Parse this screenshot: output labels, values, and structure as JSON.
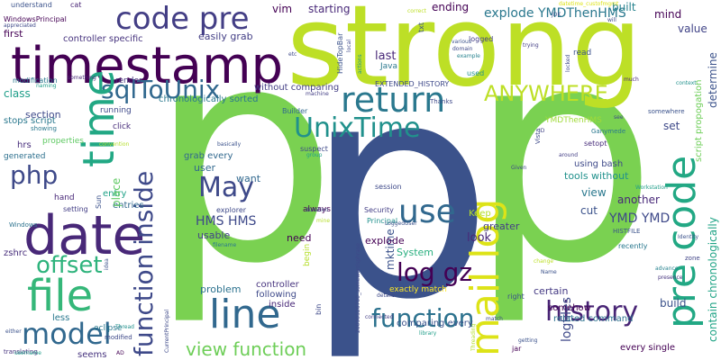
{
  "words": [
    {
      "text": "p",
      "color": "#7ad151",
      "vertical": false
    },
    {
      "text": "p",
      "color": "#7ad151",
      "vertical": false
    },
    {
      "text": "p",
      "color": "#3b528b",
      "vertical": false
    },
    {
      "text": "strong",
      "color": "#bddf26",
      "vertical": false
    },
    {
      "text": "timestamp",
      "color": "#440154",
      "vertical": false
    },
    {
      "text": "code pre",
      "color": "#433e85",
      "vertical": false
    },
    {
      "text": "date",
      "color": "#482878",
      "vertical": false
    },
    {
      "text": "file",
      "color": "#35b779",
      "vertical": false
    },
    {
      "text": "line",
      "color": "#31688e",
      "vertical": false
    },
    {
      "text": "return",
      "color": "#2a788e",
      "vertical": false
    },
    {
      "text": "UnixTime",
      "color": "#21918c",
      "vertical": false
    },
    {
      "text": "sqlToUnix",
      "color": "#31688e",
      "vertical": false
    },
    {
      "text": "ANYWHERE",
      "color": "#bddf26",
      "vertical": false
    },
    {
      "text": "model",
      "color": "#31688e",
      "vertical": false
    },
    {
      "text": "offset",
      "color": "#2eb37c",
      "vertical": false
    },
    {
      "text": "php",
      "color": "#3e4989",
      "vertical": false
    },
    {
      "text": "May",
      "color": "#3e4989",
      "vertical": false
    },
    {
      "text": "use",
      "color": "#31688e",
      "vertical": false
    },
    {
      "text": "log gz",
      "color": "#440154",
      "vertical": false
    },
    {
      "text": "function",
      "color": "#2c728e",
      "vertical": false
    },
    {
      "text": "history",
      "color": "#482475",
      "vertical": false
    },
    {
      "text": "view function",
      "color": "#6ece58",
      "vertical": false
    },
    {
      "text": "explode YMDThenHMS",
      "color": "#2a788e",
      "vertical": false
    },
    {
      "text": "HMS HMS",
      "color": "#3e4989",
      "vertical": false
    },
    {
      "text": "YMD YMD",
      "color": "#3e4989",
      "vertical": false
    },
    {
      "text": "time",
      "color": "#22a884",
      "vertical": true
    },
    {
      "text": "function inside",
      "color": "#3e4989",
      "vertical": true
    },
    {
      "text": "mail log",
      "color": "#dde318",
      "vertical": true
    },
    {
      "text": "pre code",
      "color": "#22a884",
      "vertical": true
    },
    {
      "text": "contain chronologically",
      "color": "#20a486",
      "vertical": true
    },
    {
      "text": "script propogation",
      "color": "#6ece58",
      "vertical": true
    },
    {
      "text": "determine",
      "color": "#3b528b",
      "vertical": true
    },
    {
      "text": "logfiles",
      "color": "#3e4989",
      "vertical": true
    },
    {
      "text": "mktime",
      "color": "#3b528b",
      "vertical": true
    },
    {
      "text": "vim",
      "color": "#440154",
      "vertical": false
    },
    {
      "text": "starting",
      "color": "#482878",
      "vertical": false
    },
    {
      "text": "ending",
      "color": "#440154",
      "vertical": false
    },
    {
      "text": "built",
      "color": "#26828e",
      "vertical": false
    },
    {
      "text": "first",
      "color": "#440154",
      "vertical": false
    },
    {
      "text": "controller specific",
      "color": "#46337e",
      "vertical": false
    },
    {
      "text": "easily grab",
      "color": "#433e85",
      "vertical": false
    },
    {
      "text": "last",
      "color": "#482878",
      "vertical": false
    },
    {
      "text": "value",
      "color": "#414487",
      "vertical": false
    },
    {
      "text": "mind",
      "color": "#440154",
      "vertical": false
    },
    {
      "text": "class",
      "color": "#1f9e89",
      "vertical": false
    },
    {
      "text": "section",
      "color": "#3e4989",
      "vertical": false
    },
    {
      "text": "stops script",
      "color": "#2a788e",
      "vertical": false
    },
    {
      "text": "chronologically sorted",
      "color": "#2a788e",
      "vertical": false
    },
    {
      "text": "without comparing",
      "color": "#433e85",
      "vertical": false
    },
    {
      "text": "EXTENDED_HISTORY",
      "color": "#3e4989",
      "vertical": false
    },
    {
      "text": "set",
      "color": "#3e4989",
      "vertical": false
    },
    {
      "text": "user",
      "color": "#31688e",
      "vertical": false
    },
    {
      "text": "want",
      "color": "#31688e",
      "vertical": false
    },
    {
      "text": "grab every",
      "color": "#31688e",
      "vertical": false
    },
    {
      "text": "setopt",
      "color": "#472c7a",
      "vertical": false
    },
    {
      "text": "using bash",
      "color": "#3e4989",
      "vertical": false
    },
    {
      "text": "tools without",
      "color": "#21918c",
      "vertical": false
    },
    {
      "text": "view",
      "color": "#2a788e",
      "vertical": false
    },
    {
      "text": "another",
      "color": "#482878",
      "vertical": false
    },
    {
      "text": "cut",
      "color": "#3b528b",
      "vertical": false
    },
    {
      "text": "entry",
      "color": "#1fa187",
      "vertical": false
    },
    {
      "text": "entries",
      "color": "#31688e",
      "vertical": false
    },
    {
      "text": "usable",
      "color": "#414487",
      "vertical": false
    },
    {
      "text": "need",
      "color": "#440154",
      "vertical": false
    },
    {
      "text": "explode",
      "color": "#440154",
      "vertical": false
    },
    {
      "text": "Keep",
      "color": "#b5de2b",
      "vertical": false
    },
    {
      "text": "greater",
      "color": "#433e85",
      "vertical": false
    },
    {
      "text": "look",
      "color": "#482878",
      "vertical": false
    },
    {
      "text": "System",
      "color": "#29af7f",
      "vertical": false
    },
    {
      "text": "problem",
      "color": "#2c728e",
      "vertical": false
    },
    {
      "text": "controller",
      "color": "#46337e",
      "vertical": false
    },
    {
      "text": "following",
      "color": "#3e4989",
      "vertical": false
    },
    {
      "text": "exactly match",
      "color": "#fde725",
      "vertical": false
    },
    {
      "text": "certain",
      "color": "#443983",
      "vertical": false
    },
    {
      "text": "somehow",
      "color": "#440154",
      "vertical": false
    },
    {
      "text": "build",
      "color": "#3b528b",
      "vertical": false
    },
    {
      "text": "related command",
      "color": "#2c728e",
      "vertical": false
    },
    {
      "text": "every single",
      "color": "#440154",
      "vertical": false
    },
    {
      "text": "inside",
      "color": "#482878",
      "vertical": false
    },
    {
      "text": "comparing every",
      "color": "#3b528b",
      "vertical": false
    },
    {
      "text": "less",
      "color": "#2a788e",
      "vertical": false
    },
    {
      "text": "seems",
      "color": "#46337e",
      "vertical": false
    },
    {
      "text": "hrs",
      "color": "#472d7b",
      "vertical": false
    },
    {
      "text": "generated",
      "color": "#2d708e",
      "vertical": false
    },
    {
      "text": "zshrc",
      "color": "#472d7b",
      "vertical": false
    },
    {
      "text": "running",
      "color": "#3e4989",
      "vertical": false
    },
    {
      "text": "click",
      "color": "#472c7a",
      "vertical": false
    },
    {
      "text": "properties",
      "color": "#5ec962",
      "vertical": false
    },
    {
      "text": "render",
      "color": "#46337e",
      "vertical": false
    },
    {
      "text": "modification",
      "color": "#2a788e",
      "vertical": false
    },
    {
      "text": "hand",
      "color": "#482878",
      "vertical": false
    },
    {
      "text": "setting",
      "color": "#433e85",
      "vertical": false
    },
    {
      "text": "eclipse",
      "color": "#2a788e",
      "vertical": false
    },
    {
      "text": "place",
      "color": "#5ec962",
      "vertical": true
    },
    {
      "text": "Builder",
      "color": "#31688e",
      "vertical": false
    },
    {
      "text": "YMDThenHMS",
      "color": "#a0da39",
      "vertical": false
    },
    {
      "text": "Java",
      "color": "#2a788e",
      "vertical": false
    },
    {
      "text": "read",
      "color": "#3b528b",
      "vertical": false
    },
    {
      "text": "Principal",
      "color": "#21918c",
      "vertical": false
    },
    {
      "text": "explorer",
      "color": "#3e4989",
      "vertical": false
    },
    {
      "text": "always",
      "color": "#440154",
      "vertical": false
    },
    {
      "text": "suspect",
      "color": "#3e4989",
      "vertical": false
    },
    {
      "text": "session",
      "color": "#3e4989",
      "vertical": false
    },
    {
      "text": "Security",
      "color": "#433e85",
      "vertical": false
    },
    {
      "text": "right",
      "color": "#3b528b",
      "vertical": false
    },
    {
      "text": "jar",
      "color": "#440154",
      "vertical": false
    },
    {
      "text": "recently",
      "color": "#2a788e",
      "vertical": false
    },
    {
      "text": "HISTFILE",
      "color": "#3b528b",
      "vertical": false
    },
    {
      "text": "Windows",
      "color": "#2c728e",
      "vertical": false
    },
    {
      "text": "WindowsPrincipal",
      "color": "#440154",
      "vertical": false
    },
    {
      "text": "understand",
      "color": "#3b528b",
      "vertical": false
    },
    {
      "text": "cat",
      "color": "#482475",
      "vertical": false
    },
    {
      "text": "showing",
      "color": "#2a788e",
      "vertical": false
    },
    {
      "text": "naming",
      "color": "#1f9e89",
      "vertical": false
    },
    {
      "text": "something",
      "color": "#482878",
      "vertical": false
    },
    {
      "text": "appreciated",
      "color": "#3e4989",
      "vertical": false
    },
    {
      "text": "translating",
      "color": "#46337e",
      "vertical": false
    },
    {
      "text": "either",
      "color": "#3b528b",
      "vertical": false
    },
    {
      "text": "AD",
      "color": "#440154",
      "vertical": false
    },
    {
      "text": "modified",
      "color": "#3e4989",
      "vertical": false
    },
    {
      "text": "Thread",
      "color": "#21918c",
      "vertical": false
    },
    {
      "text": "username",
      "color": "#1f9e89",
      "vertical": false
    },
    {
      "text": "getting",
      "color": "#3b528b",
      "vertical": false
    },
    {
      "text": "advance",
      "color": "#26828e",
      "vertical": false
    },
    {
      "text": "presence",
      "color": "#46337e",
      "vertical": false
    },
    {
      "text": "Identity",
      "color": "#3b528b",
      "vertical": false
    },
    {
      "text": "zone",
      "color": "#414487",
      "vertical": false
    },
    {
      "text": "duration",
      "color": "#3e4989",
      "vertical": false
    },
    {
      "text": "mine",
      "color": "#b5de2b",
      "vertical": false
    },
    {
      "text": "group",
      "color": "#1f9e89",
      "vertical": false
    },
    {
      "text": "filename",
      "color": "#2a788e",
      "vertical": false
    },
    {
      "text": "basically",
      "color": "#3b528b",
      "vertical": false
    },
    {
      "text": "convention",
      "color": "#b5de2b",
      "vertical": false
    },
    {
      "text": "machine",
      "color": "#433e85",
      "vertical": false
    },
    {
      "text": "Thanks",
      "color": "#3e4989",
      "vertical": false
    },
    {
      "text": "used",
      "color": "#21918c",
      "vertical": false
    },
    {
      "text": "logged",
      "color": "#433e85",
      "vertical": false
    },
    {
      "text": "various",
      "color": "#3b528b",
      "vertical": false
    },
    {
      "text": "domain",
      "color": "#3e4989",
      "vertical": false
    },
    {
      "text": "example",
      "color": "#26828e",
      "vertical": false
    },
    {
      "text": "trying",
      "color": "#433e85",
      "vertical": false
    },
    {
      "text": "JDK",
      "color": "#3b528b",
      "vertical": false
    },
    {
      "text": "correct",
      "color": "#bddf26",
      "vertical": false
    },
    {
      "text": "will",
      "color": "#3e4989",
      "vertical": false
    },
    {
      "text": "ID",
      "color": "#414487",
      "vertical": false
    },
    {
      "text": "Ganymede",
      "color": "#2a788e",
      "vertical": false
    },
    {
      "text": "around",
      "color": "#433e85",
      "vertical": false
    },
    {
      "text": "Workstation",
      "color": "#1f9e89",
      "vertical": false
    },
    {
      "text": "Given",
      "color": "#3e4989",
      "vertical": false
    },
    {
      "text": "Name",
      "color": "#3b528b",
      "vertical": false
    },
    {
      "text": "LoggedUser",
      "color": "#3b528b",
      "vertical": false
    },
    {
      "text": "change",
      "color": "#bddf26",
      "vertical": false
    },
    {
      "text": "match",
      "color": "#3e4989",
      "vertical": false
    },
    {
      "text": "connected",
      "color": "#433e85",
      "vertical": false
    },
    {
      "text": "details",
      "color": "#3e4989",
      "vertical": false
    },
    {
      "text": "library",
      "color": "#1f9e89",
      "vertical": false
    },
    {
      "text": "see",
      "color": "#3e4989",
      "vertical": false
    },
    {
      "text": "much",
      "color": "#482878",
      "vertical": false
    },
    {
      "text": "context",
      "color": "#21918c",
      "vertical": false
    },
    {
      "text": "somewhere",
      "color": "#3b528b",
      "vertical": false
    },
    {
      "text": "datetime_custofmgmt",
      "color": "#dde318",
      "vertical": false
    },
    {
      "text": "etc",
      "color": "#3e4989",
      "vertical": false
    },
    {
      "text": "txt",
      "color": "#3b528b",
      "vertical": true
    },
    {
      "text": "Vista",
      "color": "#3e4989",
      "vertical": true
    },
    {
      "text": "HideTopBar",
      "color": "#3b528b",
      "vertical": true
    },
    {
      "text": "actions",
      "color": "#21918c",
      "vertical": true
    },
    {
      "text": "local",
      "color": "#3e4989",
      "vertical": true
    },
    {
      "text": "locked",
      "color": "#3e4989",
      "vertical": true
    },
    {
      "text": "Threading",
      "color": "#b5de2b",
      "vertical": true
    },
    {
      "text": "20090526700_somewordsphrase",
      "color": "#3e4989",
      "vertical": true
    },
    {
      "text": "CurrentPrincipal",
      "color": "#3e4989",
      "vertical": true
    },
    {
      "text": "idea",
      "color": "#3b528b",
      "vertical": true
    },
    {
      "text": "begin",
      "color": "#b5de2b",
      "vertical": true
    },
    {
      "text": "bin",
      "color": "#3e4989",
      "vertical": true
    },
    {
      "text": "Sun",
      "color": "#3b528b",
      "vertical": true
    }
  ]
}
